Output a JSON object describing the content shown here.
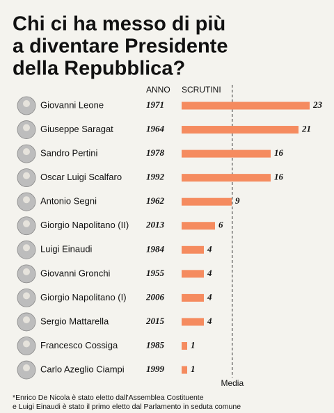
{
  "chart_data": {
    "type": "bar",
    "orientation": "horizontal",
    "title": [
      "Chi ci ha messo di più",
      "a diventare Presidente",
      "della Repubblica?"
    ],
    "column_headers": [
      "ANNO",
      "SCRUTINI"
    ],
    "categories": [
      "Giovanni Leone",
      "Giuseppe Saragat",
      "Sandro Pertini",
      "Oscar Luigi Scalfaro",
      "Antonio Segni",
      "Giorgio Napolitano (II)",
      "Luigi Einaudi",
      "Giovanni  Gronchi",
      "Giorgio Napolitano (I)",
      "Sergio Mattarella",
      "Francesco Cossiga",
      "Carlo Azeglio Ciampi"
    ],
    "years": [
      1971,
      1964,
      1978,
      1992,
      1962,
      2013,
      1984,
      1955,
      2006,
      2015,
      1985,
      1999
    ],
    "values": [
      23,
      21,
      16,
      16,
      9,
      6,
      4,
      4,
      4,
      4,
      1,
      1
    ],
    "color": "#f58b5f",
    "mean_line": {
      "value": 9.1,
      "label": "Media"
    },
    "footnote": [
      "*Enrico De Nicola è stato eletto dall'Assemblea Costituente",
      "e Luigi Einaudi è stato il primo eletto dal Parlamento in seduta comune"
    ]
  }
}
